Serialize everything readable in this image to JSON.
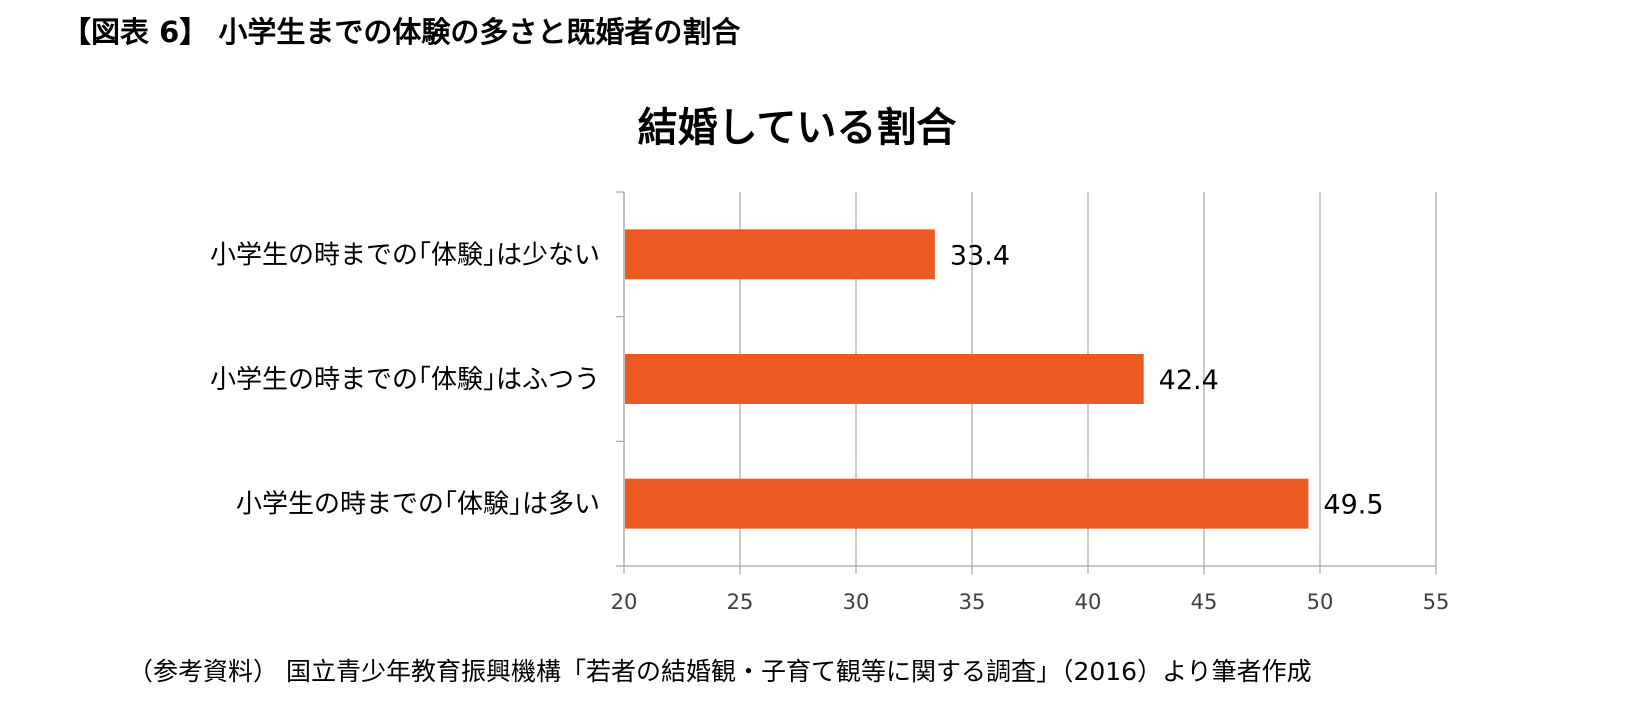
{
  "figure_heading": "【図表 6】 小学生までの体験の多さと既婚者の割合",
  "source_note": "（参考資料） 国立青少年教育振興機構「若者の結婚観・子育て観等に関する調査」（2016）より筆者作成",
  "colors": {
    "bar": "#EB5A22",
    "grid": "#A6A6A6",
    "axis": "#A6A6A6",
    "text": "#000000",
    "tick_text": "#404040"
  },
  "chart_data": {
    "type": "bar",
    "orientation": "horizontal",
    "title": "結婚している割合",
    "xlabel": "",
    "ylabel": "",
    "categories": [
      "小学生の時までの｢体験｣は少ない",
      "小学生の時までの｢体験｣はふつう",
      "小学生の時までの｢体験｣は多い"
    ],
    "values": [
      33.4,
      42.4,
      49.5
    ],
    "data_labels": [
      "33.4",
      "42.4",
      "49.5"
    ],
    "xlim": [
      20,
      55
    ],
    "xticks": [
      20,
      25,
      30,
      35,
      40,
      45,
      50,
      55
    ],
    "grid": "vertical",
    "legend": "none"
  }
}
